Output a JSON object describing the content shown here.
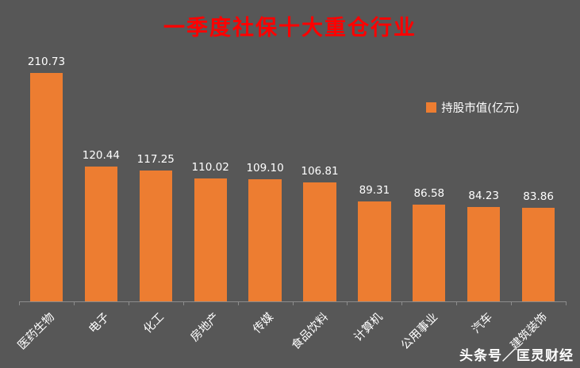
{
  "chart_data": {
    "type": "bar",
    "title": "一季度社保十大重仓行业",
    "categories": [
      "医药生物",
      "电子",
      "化工",
      "房地产",
      "传媒",
      "食品饮料",
      "计算机",
      "公用事业",
      "汽车",
      "建筑装饰"
    ],
    "values": [
      210.73,
      120.44,
      117.25,
      110.02,
      109.1,
      106.81,
      89.31,
      86.58,
      84.23,
      83.86
    ],
    "value_label_decimals": 2,
    "legend": {
      "label": "持股市值(亿元)",
      "position": "right-middle"
    },
    "xlabel": "",
    "ylabel": "",
    "ylim": [
      0,
      220
    ],
    "grid": false,
    "bar_color": "#ED7D31",
    "category_label_rotation": -45
  },
  "watermark": "头条号／匡灵财经",
  "colors": {
    "background": "#575757",
    "title": "#FF0000",
    "text": "#FFFFFF",
    "axis": "#8C8C8C",
    "bar": "#ED7D31"
  }
}
